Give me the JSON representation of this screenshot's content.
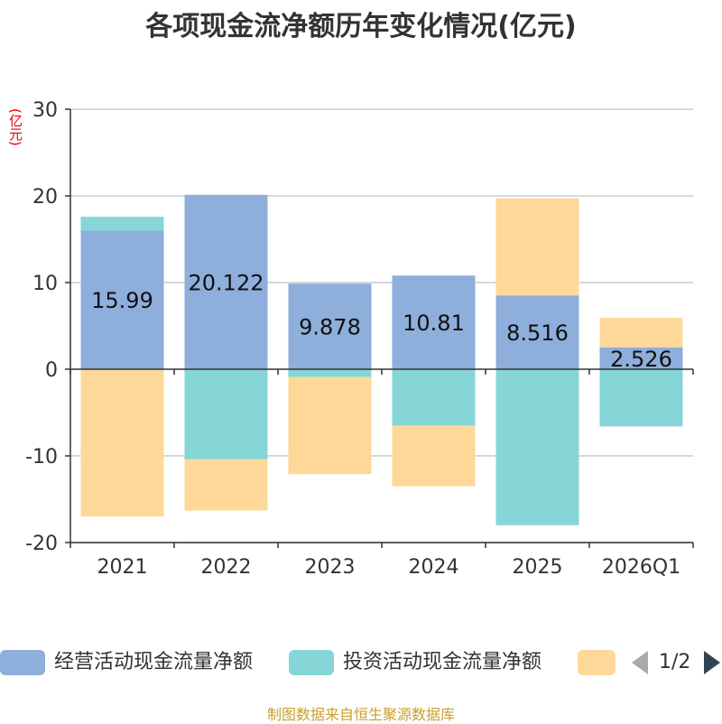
{
  "chart_data": {
    "type": "bar",
    "stacked": true,
    "title": "各项现金流净额历年变化情况(亿元)",
    "ylabel": "(亿元)",
    "ylim": [
      -20,
      30
    ],
    "yticks": [
      30,
      20,
      10,
      0,
      -10,
      -20
    ],
    "categories": [
      "2021",
      "2022",
      "2023",
      "2024",
      "2025",
      "2026Q1"
    ],
    "series": [
      {
        "name": "经营活动现金流量净额",
        "color": "#8eaedb",
        "values": [
          15.99,
          20.122,
          9.878,
          10.81,
          8.516,
          2.526
        ],
        "labels": [
          "15.99",
          "20.122",
          "9.878",
          "10.81",
          "8.516",
          "2.526"
        ]
      },
      {
        "name": "投资活动现金流量净额",
        "color": "#86d5d7",
        "values": [
          1.6,
          -10.4,
          -0.9,
          -6.5,
          -18.0,
          -6.6
        ]
      },
      {
        "name": "",
        "color": "#fed898",
        "values": [
          -17.0,
          -5.9,
          -11.2,
          -7.0,
          11.2,
          3.4
        ]
      }
    ],
    "legend": {
      "page": "1/2"
    },
    "source_note": "制图数据来自恒生聚源数据库"
  }
}
